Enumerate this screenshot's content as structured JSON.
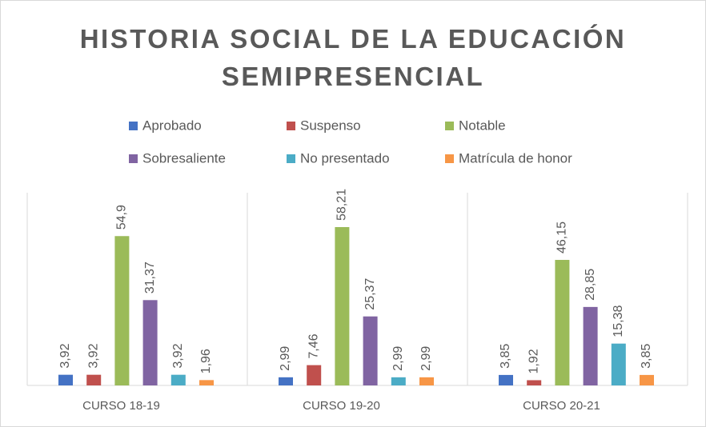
{
  "chart_data": {
    "type": "bar",
    "title": "HISTORIA SOCIAL DE LA EDUCACIÓN SEMIPRESENCIAL",
    "categories": [
      "CURSO 18-19",
      "CURSO 19-20",
      "CURSO 20-21"
    ],
    "series": [
      {
        "name": "Aprobado",
        "color": "#4472c4",
        "values": [
          3.92,
          2.99,
          3.85
        ],
        "value_labels": [
          "3,92",
          "2,99",
          "3,85"
        ]
      },
      {
        "name": "Suspenso",
        "color": "#c0504d",
        "values": [
          3.92,
          7.46,
          1.92
        ],
        "value_labels": [
          "3,92",
          "7,46",
          "1,92"
        ]
      },
      {
        "name": "Notable",
        "color": "#9bbb59",
        "values": [
          54.9,
          58.21,
          46.15
        ],
        "value_labels": [
          "54,9",
          "58,21",
          "46,15"
        ]
      },
      {
        "name": "Sobresaliente",
        "color": "#8064a2",
        "values": [
          31.37,
          25.37,
          28.85
        ],
        "value_labels": [
          "31,37",
          "25,37",
          "28,85"
        ]
      },
      {
        "name": "No presentado",
        "color": "#4bacc6",
        "values": [
          3.92,
          2.99,
          15.38
        ],
        "value_labels": [
          "3,92",
          "2,99",
          "15,38"
        ]
      },
      {
        "name": "Matrícula de honor",
        "color": "#f79646",
        "values": [
          1.96,
          2.99,
          3.85
        ],
        "value_labels": [
          "1,96",
          "2,99",
          "3,85"
        ]
      }
    ]
  }
}
